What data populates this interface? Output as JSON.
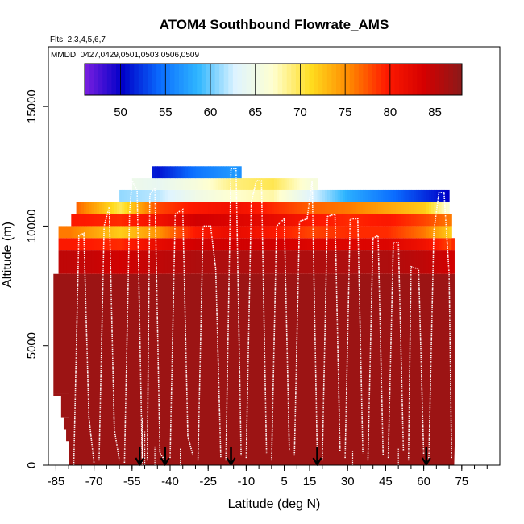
{
  "chart_data": {
    "type": "heatmap",
    "title": "ATOM4 Southbound Flowrate_AMS",
    "flights_label": "Flts: 2,3,4,5,6,7",
    "dates_label": "MMDD: 0427,0429,0501,0503,0506,0509",
    "xlabel": "Latitude (deg N)",
    "ylabel": "Altitude (m)",
    "xlim": [
      -88,
      90
    ],
    "ylim": [
      0,
      17500
    ],
    "xticks": [
      -85,
      -70,
      -55,
      -40,
      -25,
      -10,
      5,
      15,
      30,
      45,
      60,
      75
    ],
    "xtick_labels": [
      "-85",
      "-70",
      "-55",
      "-40",
      "-25",
      "-10",
      "5",
      "15",
      "30",
      "45",
      "60",
      "75"
    ],
    "xminor_step": 5,
    "yticks": [
      0,
      5000,
      10000,
      15000
    ],
    "ytick_labels": [
      "0",
      "5000",
      "10000",
      "15000"
    ],
    "colorbar": {
      "range": [
        46,
        88
      ],
      "ticks": [
        50,
        55,
        60,
        65,
        70,
        75,
        80,
        85
      ],
      "tick_labels": [
        "50",
        "55",
        "60",
        "65",
        "70",
        "75",
        "80",
        "85"
      ],
      "palette": [
        "#7b1fe0",
        "#0000c8",
        "#0a6cff",
        "#2fb6ff",
        "#dff4ff",
        "#ffffd0",
        "#ffdc1e",
        "#ff8a00",
        "#ff1a00",
        "#d40000",
        "#8b1a1a"
      ]
    },
    "altitude_bands": [
      {
        "y0": 0,
        "y1": 8000,
        "x0": -80,
        "x1": 72,
        "value": 87
      },
      {
        "y0": 8000,
        "y1": 9000,
        "x0": -84,
        "x1": 72,
        "value": 84
      },
      {
        "y0": 9000,
        "y1": 9500,
        "x0": -84,
        "x1": 72,
        "value": 79
      },
      {
        "y0": 9500,
        "y1": 10000,
        "x0": -84,
        "x1": 71,
        "value": 73
      },
      {
        "y0": 10000,
        "y1": 10500,
        "x0": -79,
        "x1": 71,
        "value": 80
      },
      {
        "y0": 10500,
        "y1": 11000,
        "x0": -77,
        "x1": 70,
        "value": 78
      },
      {
        "y0": 11000,
        "y1": 11500,
        "x0": -60,
        "x1": 70,
        "value": 60
      },
      {
        "y0": 11500,
        "y1": 12000,
        "x0": -55,
        "x1": 18,
        "value": 65
      },
      {
        "y0": 12000,
        "y1": 12500,
        "x0": -47,
        "x1": -12,
        "value": 53
      }
    ],
    "column_colors": [
      {
        "x": -80,
        "values": [
          87,
          85,
          80,
          76,
          0,
          0,
          0,
          0,
          0
        ]
      },
      {
        "x": -60,
        "values": [
          87,
          84,
          79,
          72,
          79,
          70,
          61,
          0,
          0
        ]
      },
      {
        "x": -45,
        "values": [
          87,
          85,
          82,
          75,
          81,
          78,
          62,
          64,
          51
        ]
      },
      {
        "x": -30,
        "values": [
          87,
          86,
          84,
          80,
          84,
          80,
          65,
          66,
          55
        ]
      },
      {
        "x": -15,
        "values": [
          87,
          86,
          84,
          82,
          83,
          81,
          67,
          69,
          57
        ]
      },
      {
        "x": 0,
        "values": [
          87,
          86,
          84,
          80,
          82,
          79,
          68,
          70,
          0
        ]
      },
      {
        "x": 15,
        "values": [
          87,
          86,
          83,
          78,
          80,
          77,
          63,
          66,
          0
        ]
      },
      {
        "x": 30,
        "values": [
          87,
          86,
          83,
          79,
          79,
          76,
          58,
          0,
          0
        ]
      },
      {
        "x": 45,
        "values": [
          87,
          86,
          83,
          79,
          80,
          74,
          55,
          0,
          0
        ]
      },
      {
        "x": 60,
        "values": [
          87,
          85,
          81,
          76,
          78,
          72,
          52,
          0,
          0
        ]
      },
      {
        "x": 70,
        "values": [
          87,
          84,
          78,
          72,
          76,
          66,
          50,
          0,
          0
        ]
      }
    ],
    "left_profile": [
      {
        "y": 2900,
        "x": -86
      },
      {
        "y": 3500,
        "x": -85
      },
      {
        "y": 5000,
        "x": -85
      },
      {
        "y": 6500,
        "x": -85
      },
      {
        "y": 7800,
        "x": -85
      }
    ],
    "left_steps": [
      {
        "y0": 2900,
        "y1": 3000,
        "x": -86
      },
      {
        "y0": 2000,
        "y1": 2900,
        "x": -83
      },
      {
        "y0": 1500,
        "y1": 2000,
        "x": -82
      },
      {
        "y0": 1000,
        "y1": 1500,
        "x": -81
      },
      {
        "y0": 0,
        "y1": 1000,
        "x": -80
      }
    ],
    "flight_tracks": [
      {
        "name": "track-1",
        "points": [
          [
            -78,
            0
          ],
          [
            -76,
            9600
          ],
          [
            -74,
            9700
          ],
          [
            -72,
            2000
          ],
          [
            -70,
            100
          ]
        ]
      },
      {
        "name": "track-2",
        "points": [
          [
            -68,
            200
          ],
          [
            -66,
            10000
          ],
          [
            -64,
            10800
          ],
          [
            -62,
            1500
          ],
          [
            -60,
            200
          ]
        ]
      },
      {
        "name": "track-3",
        "points": [
          [
            -58,
            100
          ],
          [
            -56,
            10500
          ],
          [
            -55,
            11900
          ],
          [
            -53,
            11500
          ],
          [
            -51,
            300
          ]
        ]
      },
      {
        "name": "track-4",
        "points": [
          [
            -49,
            200
          ],
          [
            -48,
            11300
          ],
          [
            -46,
            11600
          ],
          [
            -44,
            500
          ],
          [
            -42,
            200
          ]
        ]
      },
      {
        "name": "track-5",
        "points": [
          [
            -40,
            300
          ],
          [
            -38,
            10500
          ],
          [
            -35,
            10700
          ],
          [
            -33,
            1200
          ],
          [
            -31,
            400
          ]
        ]
      },
      {
        "name": "track-6",
        "points": [
          [
            -29,
            200
          ],
          [
            -27,
            10000
          ],
          [
            -24,
            10000
          ],
          [
            -22,
            8200
          ],
          [
            -20,
            300
          ]
        ]
      },
      {
        "name": "track-7",
        "points": [
          [
            -18,
            200
          ],
          [
            -16,
            12400
          ],
          [
            -14,
            12400
          ],
          [
            -12,
            400
          ]
        ]
      },
      {
        "name": "track-8",
        "points": [
          [
            -10,
            300
          ],
          [
            -8,
            11000
          ],
          [
            -6,
            11900
          ],
          [
            -4,
            11900
          ],
          [
            -2,
            500
          ]
        ]
      },
      {
        "name": "track-9",
        "points": [
          [
            0,
            200
          ],
          [
            2,
            10000
          ],
          [
            5,
            10300
          ],
          [
            7,
            600
          ]
        ]
      },
      {
        "name": "track-10",
        "points": [
          [
            9,
            400
          ],
          [
            11,
            10200
          ],
          [
            14,
            10300
          ],
          [
            16,
            11900
          ],
          [
            18,
            500
          ]
        ]
      },
      {
        "name": "track-11",
        "points": [
          [
            20,
            200
          ],
          [
            22,
            10400
          ],
          [
            25,
            10500
          ],
          [
            27,
            600
          ]
        ]
      },
      {
        "name": "track-12",
        "points": [
          [
            29,
            300
          ],
          [
            31,
            10300
          ],
          [
            34,
            10300
          ],
          [
            36,
            500
          ]
        ]
      },
      {
        "name": "track-13",
        "points": [
          [
            38,
            200
          ],
          [
            40,
            9500
          ],
          [
            42,
            9600
          ],
          [
            44,
            400
          ]
        ]
      },
      {
        "name": "track-14",
        "points": [
          [
            46,
            300
          ],
          [
            48,
            9300
          ],
          [
            50,
            9300
          ],
          [
            52,
            600
          ]
        ]
      },
      {
        "name": "track-15",
        "points": [
          [
            54,
            200
          ],
          [
            55,
            8300
          ],
          [
            58,
            8200
          ],
          [
            60,
            400
          ]
        ]
      },
      {
        "name": "track-16",
        "points": [
          [
            62,
            200
          ],
          [
            64,
            9800
          ],
          [
            66,
            11400
          ],
          [
            68,
            11400
          ],
          [
            70,
            8000
          ],
          [
            71,
            300
          ]
        ]
      }
    ],
    "arrows_x": [
      -52,
      -42,
      -16,
      18,
      61
    ],
    "overlay_spikes": [
      {
        "x": -51,
        "y1": 2000
      },
      {
        "x": -50,
        "y1": 1400
      },
      {
        "x": -46,
        "y1": 800
      },
      {
        "x": -36,
        "y1": 700
      },
      {
        "x": 32,
        "y1": 600
      },
      {
        "x": 50,
        "y1": 700
      }
    ]
  }
}
